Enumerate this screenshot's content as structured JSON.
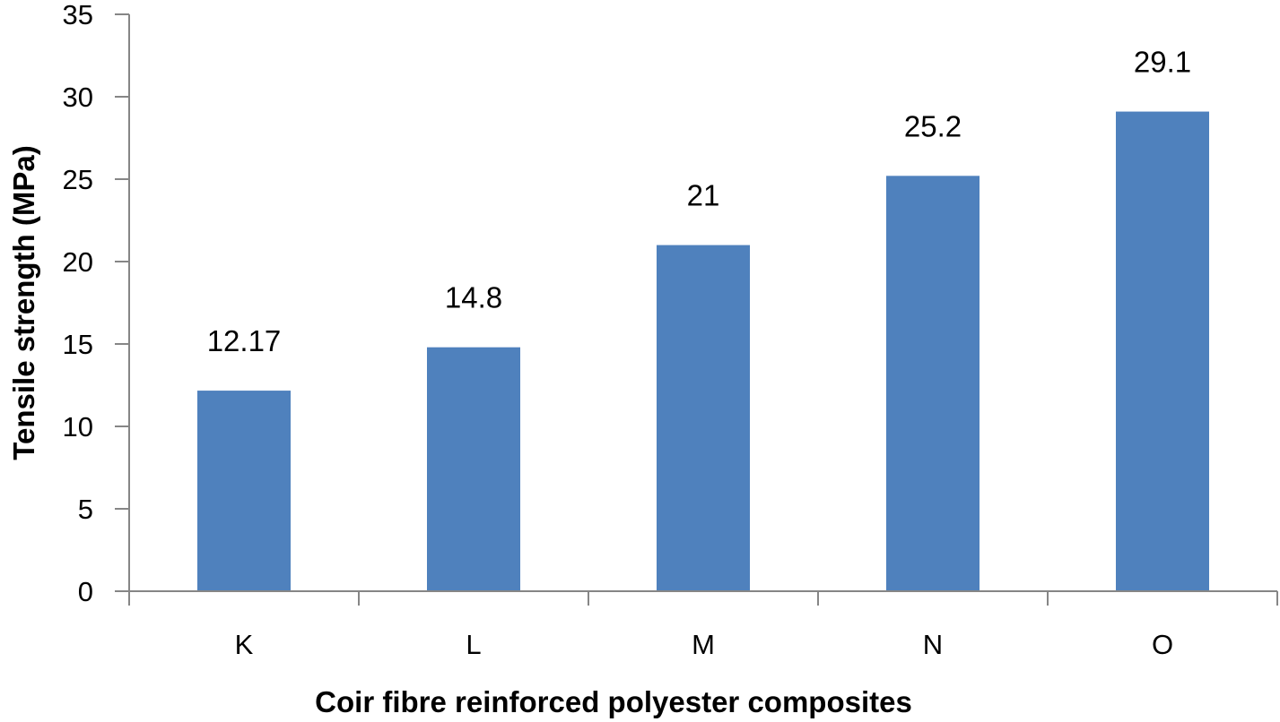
{
  "chart_data": {
    "type": "bar",
    "title": "",
    "xlabel": "Coir fibre reinforced polyester composites",
    "ylabel": "Tensile strength (MPa)",
    "categories": [
      "K",
      "L",
      "M",
      "N",
      "O"
    ],
    "values": [
      12.17,
      14.8,
      21,
      25.2,
      29.1
    ],
    "data_labels": [
      "12.17",
      "14.8",
      "21",
      "25.2",
      "29.1"
    ],
    "ylim": [
      0,
      35
    ],
    "y_ticks": [
      0,
      5,
      10,
      15,
      20,
      25,
      30,
      35
    ],
    "grid": false,
    "legend": "none",
    "bar_color": "#4F81BD",
    "axis_color": "#868686"
  }
}
